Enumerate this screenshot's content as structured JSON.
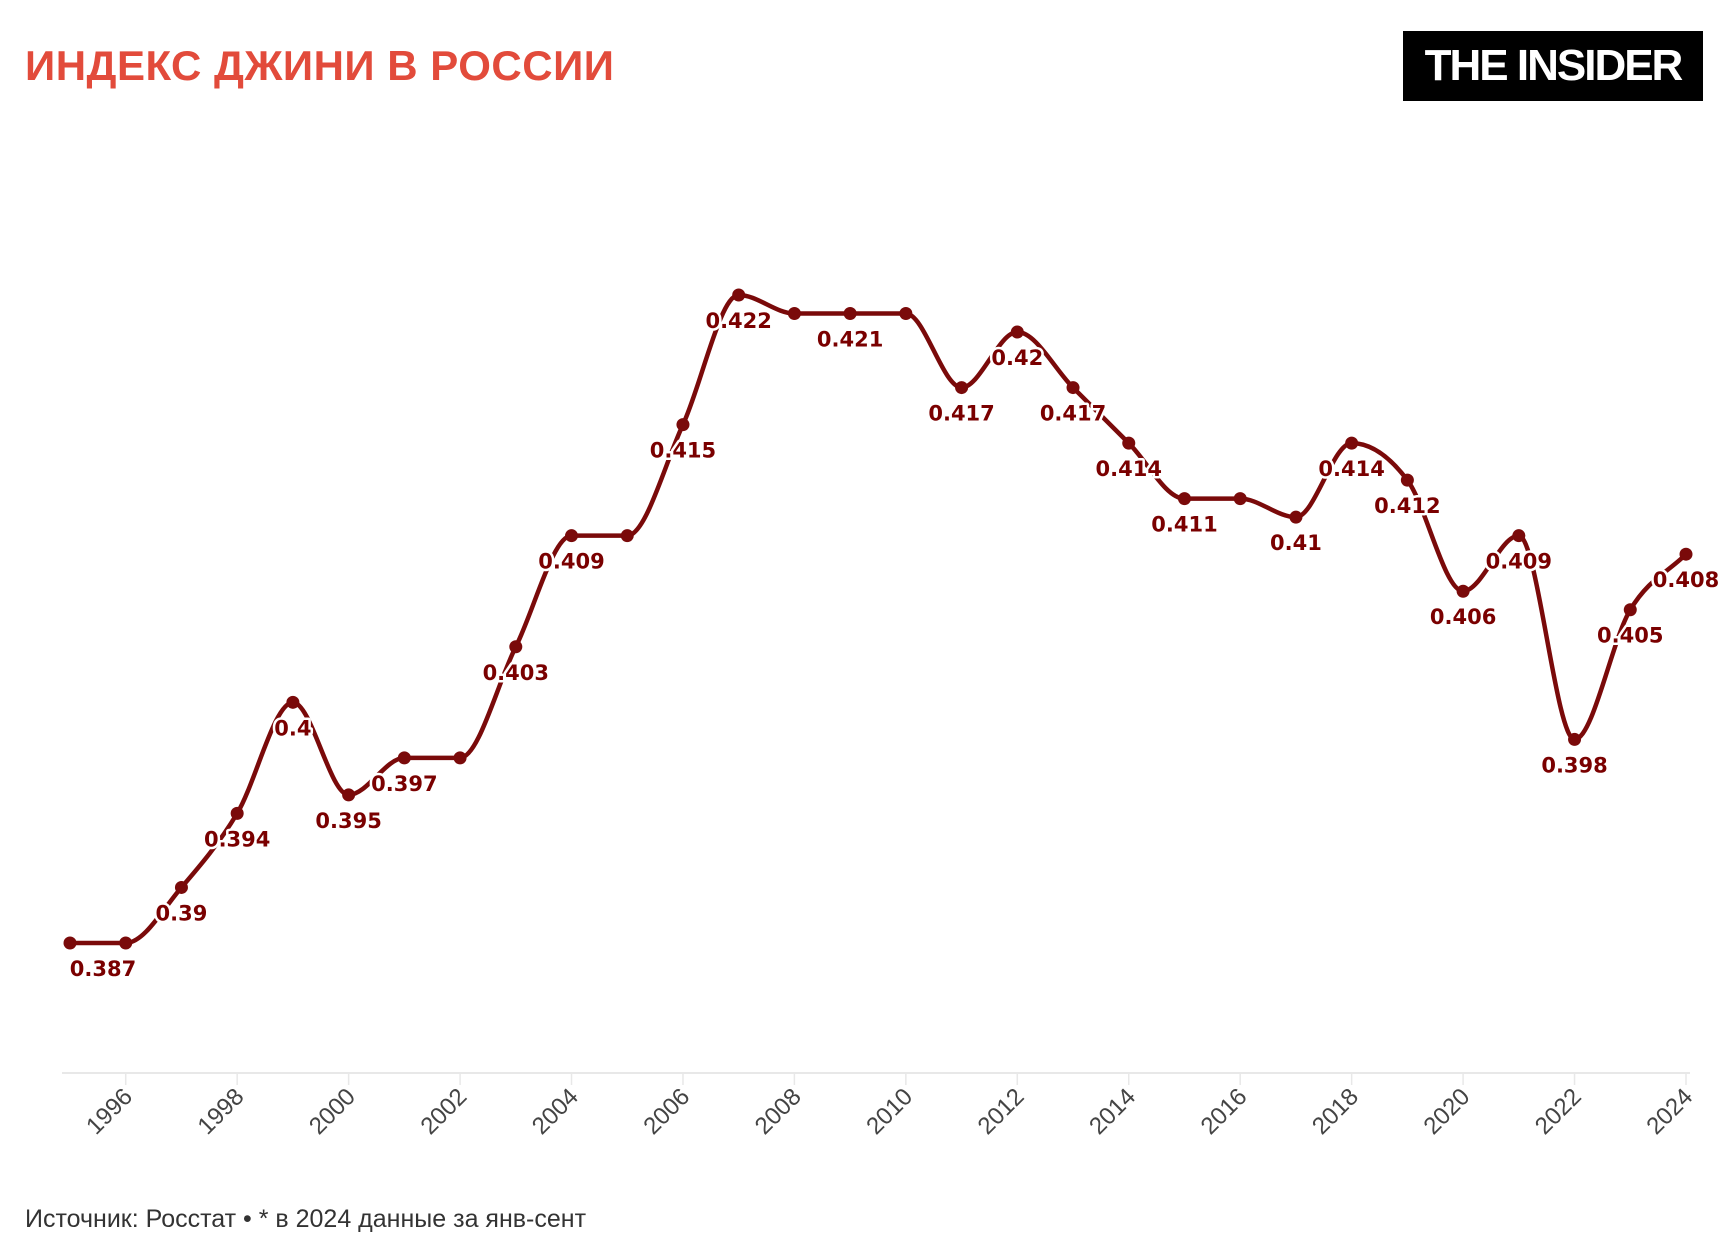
{
  "header": {
    "title": "ИНДЕКС ДЖИНИ В РОССИИ",
    "logo_text": "THE INSIDER"
  },
  "footer": {
    "source": "Источник: Росстат • * в 2024 данные за янв-сент"
  },
  "colors": {
    "title": "#e24b3b",
    "line": "#7a0a0a",
    "label": "#7a0000",
    "logo_bg": "#000000"
  },
  "chart_data": {
    "type": "line",
    "title": "ИНДЕКС ДЖИНИ В РОССИИ",
    "xlabel": "",
    "ylabel": "",
    "x": [
      1995,
      1996,
      1997,
      1998,
      1999,
      2000,
      2001,
      2002,
      2003,
      2004,
      2005,
      2006,
      2007,
      2008,
      2009,
      2010,
      2011,
      2012,
      2013,
      2014,
      2015,
      2016,
      2017,
      2018,
      2019,
      2020,
      2021,
      2022,
      2023,
      2024
    ],
    "values": [
      0.387,
      0.387,
      0.39,
      0.394,
      0.4,
      0.395,
      0.397,
      0.397,
      0.403,
      0.409,
      0.409,
      0.415,
      0.422,
      0.421,
      0.421,
      0.421,
      0.417,
      0.42,
      0.417,
      0.414,
      0.411,
      0.411,
      0.41,
      0.414,
      0.412,
      0.406,
      0.409,
      0.398,
      0.405,
      0.408
    ],
    "labeled_years": [
      1995,
      1997,
      1998,
      1999,
      2000,
      2001,
      2003,
      2004,
      2006,
      2007,
      2009,
      2011,
      2012,
      2013,
      2014,
      2015,
      2017,
      2018,
      2019,
      2020,
      2021,
      2022,
      2023,
      2024
    ],
    "labels": [
      "0.387",
      "0.39",
      "0.394",
      "0.4",
      "0.395",
      "0.397",
      "0.403",
      "0.409",
      "0.415",
      "0.422",
      "0.421",
      "0.417",
      "0.42",
      "0.417",
      "0.414",
      "0.411",
      "0.41",
      "0.414",
      "0.412",
      "0.406",
      "0.409",
      "0.398",
      "0.405",
      "0.408"
    ],
    "xticks": [
      "1996",
      "1998",
      "2000",
      "2002",
      "2004",
      "2006",
      "2008",
      "2010",
      "2012",
      "2014",
      "2016",
      "2018",
      "2020",
      "2022",
      "2024"
    ],
    "xlim": [
      1995,
      2024
    ],
    "ylim": [
      0.387,
      0.422
    ],
    "grid": false,
    "markers": true
  }
}
